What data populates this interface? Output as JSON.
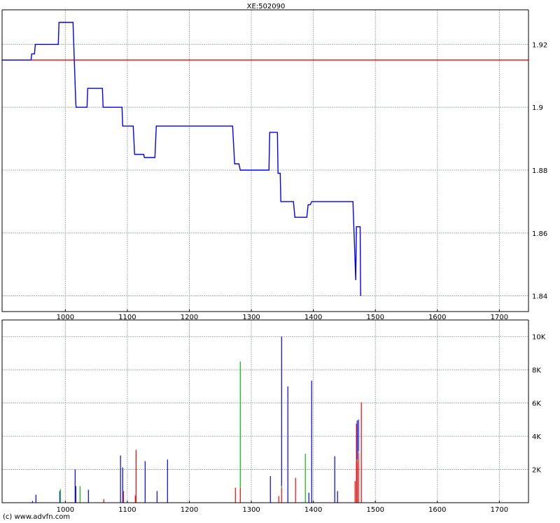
{
  "footer": "(c) www.advfn.com",
  "colors": {
    "price_line": "#0000ff",
    "reference_line": "#ff0000",
    "grid": "#a8b0b0",
    "volume_blue": "#0000ff",
    "volume_red": "#ff0000",
    "volume_green": "#00c000"
  },
  "chart_data": [
    {
      "type": "line",
      "title": "XE:502090",
      "xlim": [
        898,
        1747
      ],
      "ylim": [
        1.835,
        1.931
      ],
      "grid": true,
      "x_ticks": [
        1000,
        1100,
        1200,
        1300,
        1400,
        1500,
        1600,
        1700
      ],
      "x_tick_labels": [
        "1000",
        "1100",
        "1200",
        "1300",
        "1400",
        "1500",
        "1600",
        "1700"
      ],
      "y_ticks": [
        1.84,
        1.86,
        1.88,
        1.9,
        1.92
      ],
      "y_tick_labels": [
        "1.84",
        "1.86",
        "1.88",
        "1.9",
        "1.92"
      ],
      "reference_line": 1.915,
      "series": [
        {
          "points": [
            [
              898,
              1.915
            ],
            [
              944.7,
              1.915
            ],
            [
              945.8,
              1.917
            ],
            [
              950.3,
              1.917
            ],
            [
              951.5,
              1.92
            ],
            [
              988.7,
              1.92
            ],
            [
              989.8,
              1.927
            ],
            [
              1012.4,
              1.927
            ],
            [
              1016.9,
              1.901
            ],
            [
              1017.5,
              1.9
            ],
            [
              1035,
              1.9
            ],
            [
              1036.1,
              1.906
            ],
            [
              1059.8,
              1.906
            ],
            [
              1060.9,
              1.9
            ],
            [
              1091.4,
              1.9
            ],
            [
              1092.5,
              1.894
            ],
            [
              1109.5,
              1.894
            ],
            [
              1111.7,
              1.885
            ],
            [
              1126.4,
              1.885
            ],
            [
              1127.5,
              1.884
            ],
            [
              1144.5,
              1.884
            ],
            [
              1146.7,
              1.894
            ],
            [
              1269.8,
              1.894
            ],
            [
              1273.1,
              1.882
            ],
            [
              1279.9,
              1.882
            ],
            [
              1282.2,
              1.88
            ],
            [
              1328.4,
              1.88
            ],
            [
              1329.6,
              1.892
            ],
            [
              1342,
              1.892
            ],
            [
              1343.1,
              1.879
            ],
            [
              1346.5,
              1.879
            ],
            [
              1347.6,
              1.87
            ],
            [
              1367.9,
              1.87
            ],
            [
              1370.2,
              1.865
            ],
            [
              1389.4,
              1.865
            ],
            [
              1391.6,
              1.869
            ],
            [
              1395,
              1.869
            ],
            [
              1397.3,
              1.87
            ],
            [
              1463.9,
              1.87
            ],
            [
              1468.4,
              1.845
            ],
            [
              1469.5,
              1.862
            ],
            [
              1475.5,
              1.862
            ],
            [
              1476.3,
              1.84
            ]
          ]
        }
      ]
    },
    {
      "type": "bar",
      "stacked": true,
      "xlim": [
        898,
        1747
      ],
      "ylim": [
        0,
        11000
      ],
      "grid": true,
      "x_ticks": [
        1000,
        1100,
        1200,
        1300,
        1400,
        1500,
        1600,
        1700
      ],
      "x_tick_labels": [
        "1000",
        "1100",
        "1200",
        "1300",
        "1400",
        "1500",
        "1600",
        "1700"
      ],
      "y_ticks": [
        2000,
        4000,
        6000,
        8000,
        10000
      ],
      "y_tick_labels": [
        "2K",
        "4K",
        "6K",
        "8K",
        "10K"
      ],
      "bars": [
        {
          "x": 947,
          "segments": [
            [
              "blue",
              100
            ]
          ]
        },
        {
          "x": 952.6,
          "segments": [
            [
              "blue",
              480
            ]
          ]
        },
        {
          "x": 991,
          "segments": [
            [
              "blue",
              700
            ]
          ]
        },
        {
          "x": 992,
          "segments": [
            [
              "green",
              820
            ]
          ]
        },
        {
          "x": 1015.8,
          "segments": [
            [
              "blue",
              2000
            ]
          ]
        },
        {
          "x": 1016.9,
          "segments": [
            [
              "blue",
              1000
            ]
          ]
        },
        {
          "x": 1023.7,
          "segments": [
            [
              "green",
              1000
            ]
          ]
        },
        {
          "x": 1037.2,
          "segments": [
            [
              "blue",
              780
            ]
          ]
        },
        {
          "x": 1062,
          "segments": [
            [
              "red",
              220
            ]
          ]
        },
        {
          "x": 1089,
          "segments": [
            [
              "blue",
              2840
            ]
          ]
        },
        {
          "x": 1092.6,
          "segments": [
            [
              "blue",
              2120
            ]
          ]
        },
        {
          "x": 1093.7,
          "segments": [
            [
              "red",
              700
            ]
          ]
        },
        {
          "x": 1112.9,
          "segments": [
            [
              "red",
              440
            ]
          ]
        },
        {
          "x": 1114,
          "segments": [
            [
              "red",
              3180
            ]
          ]
        },
        {
          "x": 1128.7,
          "segments": [
            [
              "blue",
              2500
            ]
          ]
        },
        {
          "x": 1147.9,
          "segments": [
            [
              "blue",
              700
            ]
          ]
        },
        {
          "x": 1164.8,
          "segments": [
            [
              "blue",
              2600
            ]
          ]
        },
        {
          "x": 1274.3,
          "segments": [
            [
              "red",
              900
            ]
          ]
        },
        {
          "x": 1282.2,
          "segments": [
            [
              "red",
              900
            ],
            [
              "green",
              7600
            ]
          ]
        },
        {
          "x": 1330.7,
          "segments": [
            [
              "blue",
              1600
            ]
          ]
        },
        {
          "x": 1344.2,
          "segments": [
            [
              "red",
              400
            ]
          ]
        },
        {
          "x": 1348.8,
          "segments": [
            [
              "red",
              900
            ],
            [
              "green",
              100
            ],
            [
              "blue",
              9000
            ]
          ]
        },
        {
          "x": 1358.9,
          "segments": [
            [
              "blue",
              7000
            ]
          ]
        },
        {
          "x": 1371.3,
          "segments": [
            [
              "red",
              1500
            ]
          ]
        },
        {
          "x": 1387.1,
          "segments": [
            [
              "green",
              2950
            ]
          ]
        },
        {
          "x": 1392.8,
          "segments": [
            [
              "blue",
              600
            ]
          ]
        },
        {
          "x": 1397.3,
          "segments": [
            [
              "blue",
              7350
            ]
          ]
        },
        {
          "x": 1434.5,
          "segments": [
            [
              "blue",
              2800
            ]
          ]
        },
        {
          "x": 1439,
          "segments": [
            [
              "blue",
              700
            ]
          ]
        },
        {
          "x": 1467.3,
          "segments": [
            [
              "red",
              1300
            ]
          ]
        },
        {
          "x": 1469.5,
          "segments": [
            [
              "red",
              4750
            ]
          ]
        },
        {
          "x": 1470.7,
          "segments": [
            [
              "red",
              2500
            ],
            [
              "green",
              100
            ],
            [
              "blue",
              2350
            ]
          ]
        },
        {
          "x": 1472.9,
          "segments": [
            [
              "red",
              3000
            ],
            [
              "green",
              100
            ],
            [
              "blue",
              1900
            ]
          ]
        },
        {
          "x": 1477.4,
          "segments": [
            [
              "red",
              6050
            ]
          ]
        }
      ]
    }
  ]
}
